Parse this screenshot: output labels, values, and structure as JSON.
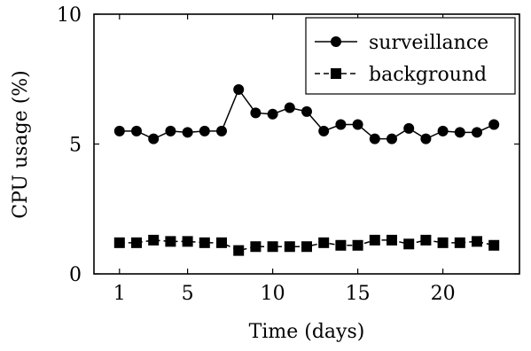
{
  "chart_data": {
    "type": "line",
    "xlabel": "Time (days)",
    "ylabel": "CPU usage (%)",
    "xlim": [
      -0.5,
      24.5
    ],
    "ylim": [
      0,
      10
    ],
    "xticks": [
      1,
      5,
      10,
      15,
      20
    ],
    "yticks": [
      0,
      5,
      10
    ],
    "grid": false,
    "legend_position": "top-right",
    "x": [
      1,
      2,
      3,
      4,
      5,
      6,
      7,
      8,
      9,
      10,
      11,
      12,
      13,
      14,
      15,
      16,
      17,
      18,
      19,
      20,
      21,
      22,
      23
    ],
    "series": [
      {
        "name": "surveillance",
        "marker": "circle",
        "line_style": "solid",
        "values": [
          5.5,
          5.5,
          5.2,
          5.5,
          5.45,
          5.5,
          5.5,
          7.1,
          6.2,
          6.15,
          6.4,
          6.25,
          5.5,
          5.75,
          5.75,
          5.2,
          5.2,
          5.6,
          5.2,
          5.5,
          5.45,
          5.45,
          5.75
        ]
      },
      {
        "name": "background",
        "marker": "square",
        "line_style": "dashed",
        "values": [
          1.2,
          1.2,
          1.3,
          1.25,
          1.25,
          1.2,
          1.2,
          0.9,
          1.05,
          1.05,
          1.05,
          1.05,
          1.2,
          1.1,
          1.1,
          1.3,
          1.3,
          1.15,
          1.3,
          1.2,
          1.2,
          1.25,
          1.1
        ]
      }
    ]
  }
}
